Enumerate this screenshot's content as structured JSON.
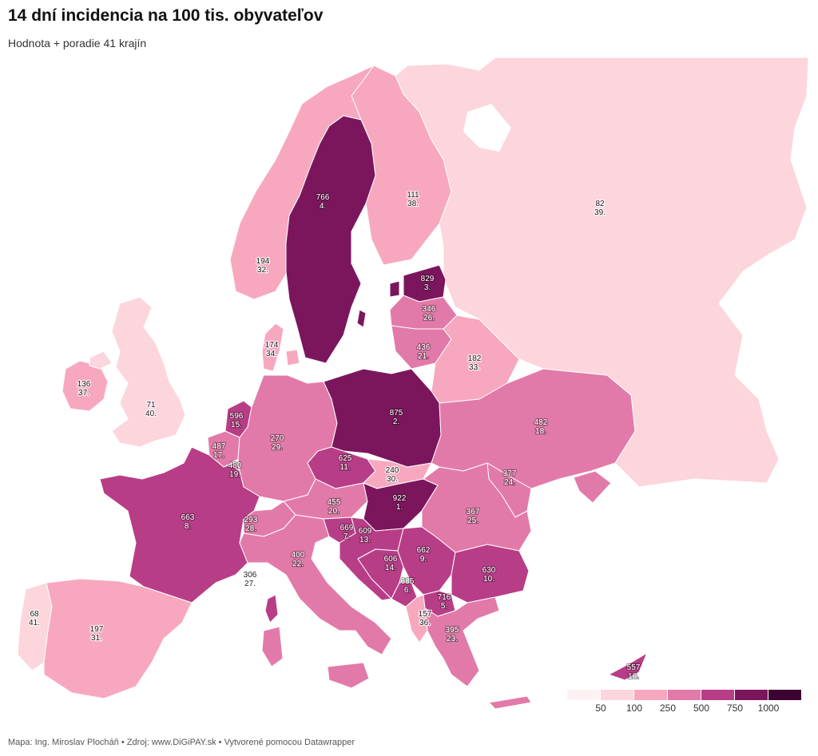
{
  "title": "14 dní incidencia na 100 tis. obyvateľov",
  "subtitle": "Hodnota + poradie 41 krajín",
  "footer": "Mapa: Ing. Miroslav Plocháň • Zdroj: www.DiGiPAY.sk • Vytvorené pomocou Datawrapper",
  "legend": {
    "ticks": [
      "50",
      "100",
      "250",
      "500",
      "750",
      "1000"
    ],
    "colors": [
      "#fef1f3",
      "#fdd5dc",
      "#f7a8bf",
      "#e27aa9",
      "#b83d87",
      "#7b165d",
      "#3d0231"
    ]
  },
  "regions": [
    {
      "id": "russia",
      "value": "82",
      "rank": "39."
    },
    {
      "id": "finland",
      "value": "111",
      "rank": "38."
    },
    {
      "id": "norway",
      "value": "194",
      "rank": "32."
    },
    {
      "id": "sweden",
      "value": "766",
      "rank": "4."
    },
    {
      "id": "estonia",
      "value": "829",
      "rank": "3."
    },
    {
      "id": "latvia",
      "value": "346",
      "rank": "26."
    },
    {
      "id": "lithuania",
      "value": "436",
      "rank": "21."
    },
    {
      "id": "belarus",
      "value": "182",
      "rank": "33."
    },
    {
      "id": "denmark",
      "value": "174",
      "rank": "34."
    },
    {
      "id": "ireland",
      "value": "136",
      "rank": "37."
    },
    {
      "id": "uk",
      "value": "71",
      "rank": "40."
    },
    {
      "id": "netherlands",
      "value": "596",
      "rank": "15."
    },
    {
      "id": "belgium",
      "value": "487",
      "rank": "17."
    },
    {
      "id": "luxembourg",
      "value": "480",
      "rank": "19."
    },
    {
      "id": "germany",
      "value": "270",
      "rank": "29."
    },
    {
      "id": "poland",
      "value": "875",
      "rank": "2."
    },
    {
      "id": "ukraine",
      "value": "482",
      "rank": "18."
    },
    {
      "id": "czechia",
      "value": "625",
      "rank": "11."
    },
    {
      "id": "slovakia",
      "value": "240",
      "rank": "30."
    },
    {
      "id": "moldova",
      "value": "377",
      "rank": "24."
    },
    {
      "id": "austria",
      "value": "455",
      "rank": "20."
    },
    {
      "id": "hungary",
      "value": "922",
      "rank": "1."
    },
    {
      "id": "romania",
      "value": "367",
      "rank": "25."
    },
    {
      "id": "france",
      "value": "663",
      "rank": "8."
    },
    {
      "id": "switzerland",
      "value": "293",
      "rank": "28."
    },
    {
      "id": "slovenia",
      "value": "669",
      "rank": "7."
    },
    {
      "id": "croatia",
      "value": "609",
      "rank": "13."
    },
    {
      "id": "italy",
      "value": "400",
      "rank": "22."
    },
    {
      "id": "bosnia",
      "value": "606",
      "rank": "14."
    },
    {
      "id": "serbia",
      "value": "662",
      "rank": "9."
    },
    {
      "id": "bulgaria",
      "value": "630",
      "rank": "10."
    },
    {
      "id": "montenegro",
      "value": "685",
      "rank": "6."
    },
    {
      "id": "north-macedonia",
      "value": "716",
      "rank": "5."
    },
    {
      "id": "monaco",
      "value": "306",
      "rank": "27."
    },
    {
      "id": "albania",
      "value": "157",
      "rank": "36."
    },
    {
      "id": "greece",
      "value": "395",
      "rank": "23."
    },
    {
      "id": "portugal",
      "value": "68",
      "rank": "41."
    },
    {
      "id": "spain",
      "value": "197",
      "rank": "31."
    },
    {
      "id": "cyprus",
      "value": "557",
      "rank": "16."
    }
  ]
}
